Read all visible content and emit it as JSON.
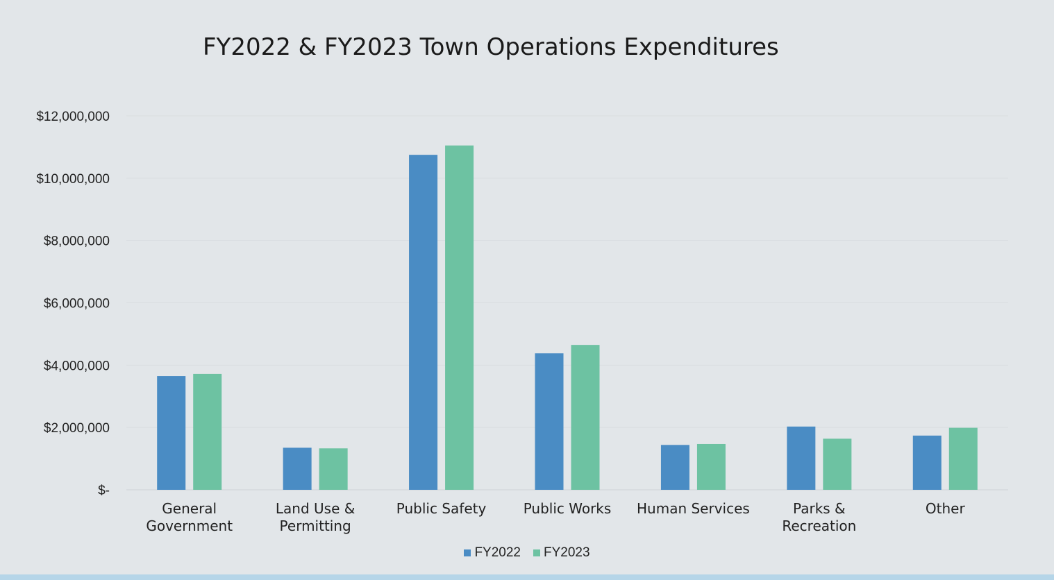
{
  "chart_data": {
    "type": "bar",
    "title": "FY2022 & FY2023 Town Operations Expenditures",
    "xlabel": "",
    "ylabel": "",
    "ylim": [
      0,
      12000000
    ],
    "yticks": [
      0,
      2000000,
      4000000,
      6000000,
      8000000,
      10000000,
      12000000
    ],
    "ytick_labels": [
      "$-",
      "$2,000,000",
      "$4,000,000",
      "$6,000,000",
      "$8,000,000",
      "$10,000,000",
      "$12,000,000"
    ],
    "grid": true,
    "legend_position": "bottom",
    "categories": [
      "General Government",
      "Land Use & Permitting",
      "Public Safety",
      "Public Works",
      "Human Services",
      "Parks & Recreation",
      "Other"
    ],
    "category_label_lines": [
      [
        "General",
        "Government"
      ],
      [
        "Land Use &",
        "Permitting"
      ],
      [
        "Public Safety"
      ],
      [
        "Public Works"
      ],
      [
        "Human Services"
      ],
      [
        "Parks &",
        "Recreation"
      ],
      [
        "Other"
      ]
    ],
    "series": [
      {
        "name": "FY2022",
        "color": "#4a8cc4",
        "values": [
          3650000,
          1350000,
          10750000,
          4380000,
          1440000,
          2030000,
          1740000
        ]
      },
      {
        "name": "FY2023",
        "color": "#6dc2a2",
        "values": [
          3720000,
          1330000,
          11050000,
          4650000,
          1470000,
          1640000,
          1990000
        ]
      }
    ]
  }
}
